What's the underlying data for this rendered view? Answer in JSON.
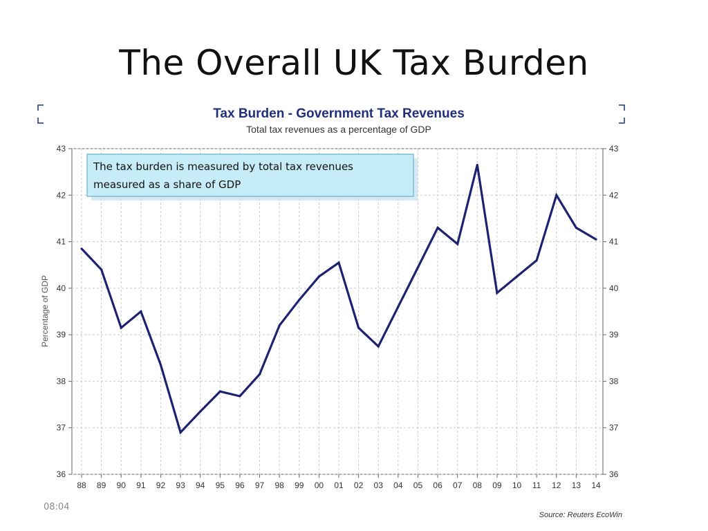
{
  "slide": {
    "title": "The Overall UK Tax Burden",
    "time": "08:04"
  },
  "chart_data": {
    "type": "line",
    "title": "Tax Burden - Government Tax Revenues",
    "subtitle": "Total tax revenues as a percentage of GDP",
    "ylabel": "Percentage of GDP",
    "xlabel": "",
    "categories": [
      "88",
      "89",
      "90",
      "91",
      "92",
      "93",
      "94",
      "95",
      "96",
      "97",
      "98",
      "99",
      "00",
      "01",
      "02",
      "03",
      "04",
      "05",
      "06",
      "07",
      "08",
      "09",
      "10",
      "11",
      "12",
      "13",
      "14"
    ],
    "series": [
      {
        "values": [
          40.85,
          40.4,
          39.15,
          39.5,
          38.35,
          36.9,
          37.35,
          37.78,
          37.68,
          38.15,
          39.2,
          39.75,
          40.25,
          40.55,
          39.15,
          38.75,
          39.6,
          40.45,
          41.3,
          40.95,
          42.65,
          39.9,
          40.25,
          40.6,
          42.0,
          41.3,
          41.05
        ]
      }
    ],
    "ylim": [
      36,
      43
    ],
    "yticks": [
      36,
      37,
      38,
      39,
      40,
      41,
      42,
      43
    ],
    "grid": true,
    "annotation": {
      "line1": "The tax burden is measured by total tax revenues",
      "line2": "measured as a share of GDP"
    },
    "source": "Source: Reuters EcoWin",
    "colors": {
      "line": "#1c2270",
      "title": "#1f2f7a",
      "annotation_fill": "#c6ecf7",
      "annotation_border": "#4aa3c9",
      "grid": "#c8c8c8"
    }
  }
}
